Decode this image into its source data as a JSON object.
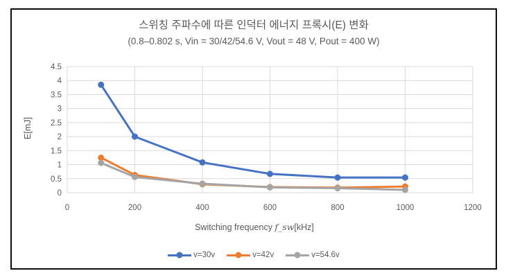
{
  "chart_data": {
    "type": "line",
    "title": "스위칭 주파수에 따른 인덕터 에너지 프록시(E) 변화",
    "subtitle": "(0.8–0.802 s, Vin = 30/42/54.6 V, Vout = 48 V, Pout = 400 W)",
    "xlabel": "Switching frequency f_sw[kHz]",
    "xlabel_parts": {
      "prefix": "Switching frequency ",
      "italic": "f_sw",
      "suffix": "[kHz]"
    },
    "ylabel": "E[mJ]",
    "x": [
      100,
      200,
      400,
      600,
      800,
      1000
    ],
    "series": [
      {
        "name": "v=30v",
        "color": "#4472C4",
        "values": [
          3.85,
          2.0,
          1.08,
          0.67,
          0.54,
          0.54
        ]
      },
      {
        "name": "v=42v",
        "color": "#ED7D31",
        "values": [
          1.25,
          0.63,
          0.3,
          0.2,
          0.18,
          0.22
        ]
      },
      {
        "name": "v=54.6v",
        "color": "#A5A5A5",
        "values": [
          1.06,
          0.56,
          0.32,
          0.19,
          0.16,
          0.1
        ]
      }
    ],
    "xlim": [
      0,
      1200
    ],
    "ylim": [
      0,
      4.5
    ],
    "x_ticks": [
      0,
      200,
      400,
      600,
      800,
      1000,
      1200
    ],
    "y_ticks": [
      0,
      0.5,
      1,
      1.5,
      2,
      2.5,
      3,
      3.5,
      4,
      4.5
    ],
    "grid": true,
    "legend_position": "bottom",
    "colors": {
      "grid": "#D9D9D9",
      "text": "#595959",
      "border": "#0D0D0D",
      "background": "#FFFFFF"
    }
  }
}
